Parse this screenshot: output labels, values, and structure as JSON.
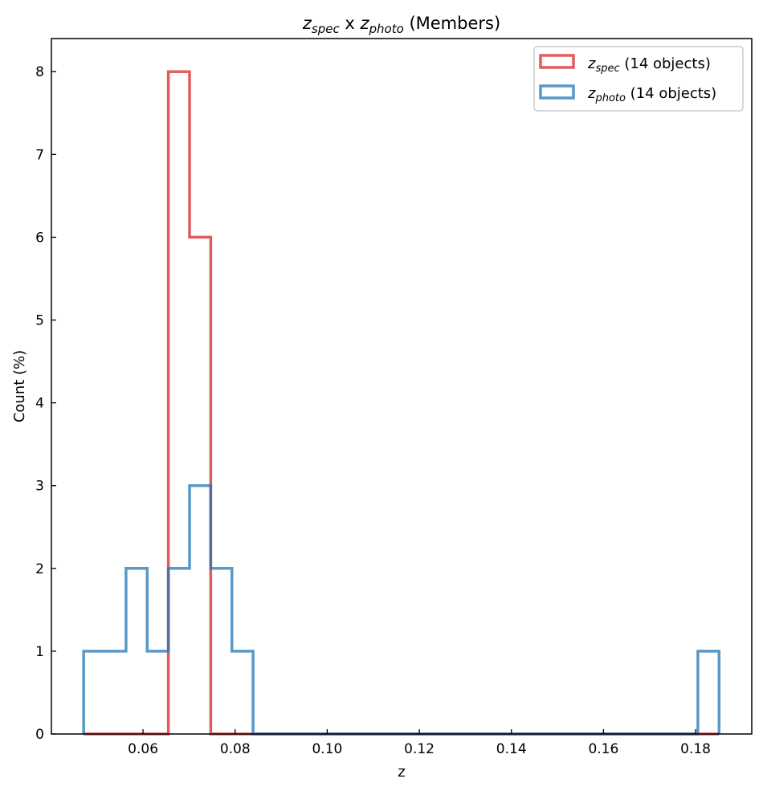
{
  "chart_data": {
    "type": "histogram-step",
    "title": {
      "var": "z",
      "sub1": "spec",
      "mid": " x ",
      "sub2": "photo",
      "suffix": " (Members)"
    },
    "xlabel": "z",
    "ylabel": "Count (%)",
    "xlim": [
      0.0401,
      0.1922
    ],
    "ylim": [
      0,
      8.4
    ],
    "xticks": [
      0.06,
      0.08,
      0.1,
      0.12,
      0.14,
      0.16,
      0.18
    ],
    "xtick_labels": [
      "0.06",
      "0.08",
      "0.10",
      "0.12",
      "0.14",
      "0.16",
      "0.18"
    ],
    "yticks": [
      0,
      1,
      2,
      3,
      4,
      5,
      6,
      7,
      8
    ],
    "ytick_labels": [
      "0",
      "1",
      "2",
      "3",
      "4",
      "5",
      "6",
      "7",
      "8"
    ],
    "bin_start": 0.0471,
    "bin_width": 0.0046,
    "series": [
      {
        "name": "z_spec",
        "legend_sub": "spec",
        "legend_suffix": " (14 objects)",
        "color": "#d62728",
        "counts": [
          0,
          0,
          0,
          0,
          8,
          6,
          0,
          0,
          0,
          0,
          0,
          0,
          0,
          0,
          0,
          0,
          0,
          0,
          0,
          0,
          0,
          0,
          0,
          0,
          0,
          0,
          0,
          0,
          0,
          0
        ]
      },
      {
        "name": "z_photo",
        "legend_sub": "photo",
        "legend_suffix": " (14 objects)",
        "color": "#1f77b4",
        "counts": [
          1,
          1,
          2,
          1,
          2,
          3,
          2,
          1,
          0,
          0,
          0,
          0,
          0,
          0,
          0,
          0,
          0,
          0,
          0,
          0,
          0,
          0,
          0,
          0,
          0,
          0,
          0,
          0,
          0,
          1
        ]
      }
    ],
    "legend_position": "top-right",
    "grid": false
  }
}
